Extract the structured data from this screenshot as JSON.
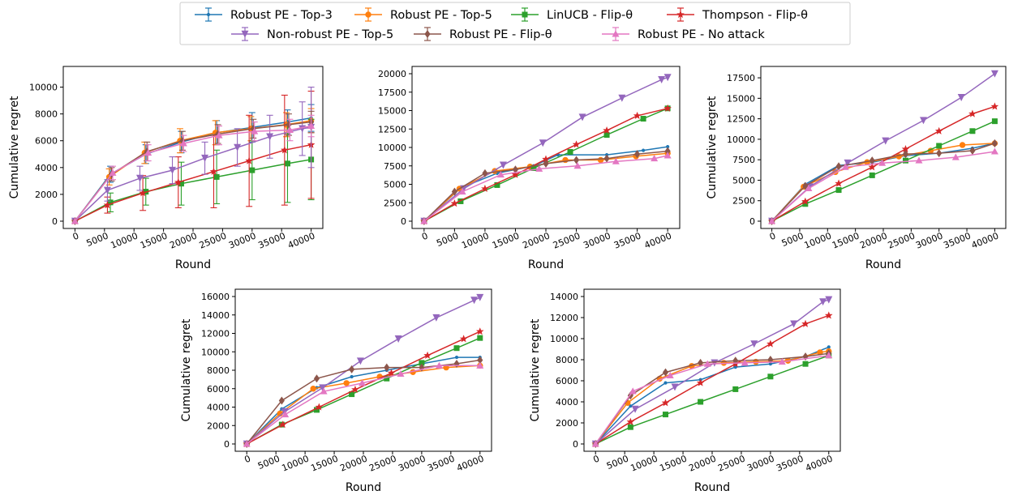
{
  "figure": {
    "legend_placement": "top-center",
    "legend_columns": 4
  },
  "series_styles": [
    {
      "name": "Robust PE - Top-3",
      "color": "#1f77b4",
      "marker": "point"
    },
    {
      "name": "Robust PE - Top-5",
      "color": "#ff7f0e",
      "marker": "circle"
    },
    {
      "name": "LinUCB - Flip-θ",
      "color": "#2ca02c",
      "marker": "square"
    },
    {
      "name": "Thompson - Flip-θ",
      "color": "#d62728",
      "marker": "star"
    },
    {
      "name": "Non-robust PE - Top-5",
      "color": "#9467bd",
      "marker": "triangle-down"
    },
    {
      "name": "Robust PE - Flip-θ",
      "color": "#8c564b",
      "marker": "diamond"
    },
    {
      "name": "Robust PE - No attack",
      "color": "#e377c2",
      "marker": "triangle-up"
    }
  ],
  "chart_data": [
    {
      "type": "line",
      "panel": "top-left",
      "xlabel": "Round",
      "ylabel": "Cumulative regret",
      "xlim": [
        0,
        40000
      ],
      "ylim": [
        0,
        11000
      ],
      "xticks": [
        0,
        5000,
        10000,
        15000,
        20000,
        25000,
        30000,
        35000,
        40000
      ],
      "yticks": [
        0,
        2000,
        4000,
        6000,
        8000,
        10000
      ],
      "error_bars": true,
      "series": [
        {
          "name": "Robust PE - Top-3",
          "x": [
            0,
            6000,
            12000,
            18000,
            24000,
            30000,
            36000,
            40000
          ],
          "y": [
            0,
            3500,
            5000,
            5900,
            6600,
            7000,
            7400,
            7700
          ],
          "err": [
            0,
            600,
            700,
            800,
            900,
            1100,
            900,
            1000
          ]
        },
        {
          "name": "Robust PE - Top-5",
          "x": [
            0,
            5800,
            11800,
            17800,
            23800,
            29800,
            35800,
            40000
          ],
          "y": [
            0,
            3300,
            5100,
            6000,
            6600,
            6900,
            7200,
            7500
          ],
          "err": [
            0,
            600,
            800,
            900,
            900,
            900,
            900,
            900
          ]
        },
        {
          "name": "LinUCB - Flip-θ",
          "x": [
            0,
            6000,
            12000,
            18000,
            24000,
            30000,
            36000,
            40000
          ],
          "y": [
            0,
            1400,
            2200,
            2800,
            3300,
            3800,
            4300,
            4600
          ],
          "err": [
            0,
            700,
            1000,
            1600,
            2000,
            2200,
            2900,
            3000
          ]
        },
        {
          "name": "Thompson - Flip-θ",
          "x": [
            0,
            5500,
            11500,
            17500,
            23500,
            29500,
            35500,
            40000
          ],
          "y": [
            0,
            1200,
            2100,
            2900,
            3700,
            4500,
            5300,
            5700
          ],
          "err": [
            0,
            600,
            1300,
            1900,
            2700,
            3400,
            4100,
            4000
          ]
        },
        {
          "name": "Non-robust PE - Top-5",
          "x": [
            0,
            5500,
            11000,
            16500,
            22000,
            27500,
            33000,
            38500,
            40000
          ],
          "y": [
            0,
            2300,
            3200,
            3800,
            4700,
            5500,
            6300,
            6900,
            7000
          ],
          "err": [
            0,
            800,
            900,
            1000,
            1200,
            1400,
            1600,
            2000,
            3000
          ]
        },
        {
          "name": "Robust PE - Flip-θ",
          "x": [
            0,
            6200,
            12200,
            18200,
            24200,
            30200,
            36200,
            40000
          ],
          "y": [
            0,
            3500,
            5200,
            6000,
            6500,
            6900,
            7200,
            7400
          ],
          "err": [
            0,
            500,
            700,
            700,
            700,
            700,
            800,
            800
          ]
        },
        {
          "name": "Robust PE - No attack",
          "x": [
            0,
            6400,
            12400,
            18400,
            24400,
            30400,
            36400,
            40000
          ],
          "y": [
            0,
            3600,
            5100,
            5800,
            6400,
            6700,
            6800,
            7100
          ],
          "err": [
            0,
            500,
            600,
            600,
            700,
            700,
            800,
            800
          ]
        }
      ]
    },
    {
      "type": "line",
      "panel": "top-middle",
      "xlabel": "Round",
      "ylabel": "",
      "xlim": [
        0,
        40000
      ],
      "ylim": [
        0,
        20000
      ],
      "xticks": [
        0,
        5000,
        10000,
        15000,
        20000,
        25000,
        30000,
        35000,
        40000
      ],
      "yticks": [
        0,
        2500,
        5000,
        7500,
        10000,
        12500,
        15000,
        17500,
        20000
      ],
      "series": [
        {
          "name": "Robust PE - Top-3",
          "x": [
            0,
            6000,
            12000,
            18000,
            22000,
            30000,
            36000,
            40000
          ],
          "y": [
            0,
            4500,
            6500,
            7500,
            9000,
            9000,
            9600,
            10100
          ]
        },
        {
          "name": "Robust PE - Top-5",
          "x": [
            0,
            5800,
            11600,
            17400,
            23200,
            29000,
            34800,
            40000
          ],
          "y": [
            0,
            4400,
            6800,
            7400,
            8300,
            8300,
            8800,
            9200
          ]
        },
        {
          "name": "LinUCB - Flip-θ",
          "x": [
            0,
            6000,
            12000,
            18000,
            24000,
            30000,
            36000,
            40000
          ],
          "y": [
            0,
            2700,
            4900,
            7200,
            9400,
            11700,
            13900,
            15300
          ]
        },
        {
          "name": "Thompson - Flip-θ",
          "x": [
            0,
            5000,
            10000,
            15000,
            20000,
            25000,
            30000,
            35000,
            40000
          ],
          "y": [
            0,
            2400,
            4400,
            6300,
            8400,
            10400,
            12300,
            14300,
            15300
          ]
        },
        {
          "name": "Non-robust PE - Top-5",
          "x": [
            0,
            6500,
            13000,
            19500,
            26000,
            32500,
            39000,
            40000
          ],
          "y": [
            0,
            4400,
            7600,
            10600,
            14100,
            16700,
            19200,
            19500
          ]
        },
        {
          "name": "Robust PE - Flip-θ",
          "x": [
            0,
            5000,
            10000,
            15000,
            20000,
            25000,
            30000,
            35000,
            40000
          ],
          "y": [
            0,
            4000,
            6500,
            7000,
            7800,
            8300,
            8500,
            9100,
            9500
          ]
        },
        {
          "name": "Robust PE - No attack",
          "x": [
            0,
            6300,
            12600,
            18900,
            25200,
            31500,
            37800,
            40000
          ],
          "y": [
            0,
            4000,
            6300,
            7100,
            7500,
            8100,
            8500,
            8900
          ]
        }
      ]
    },
    {
      "type": "line",
      "panel": "top-right",
      "xlabel": "Round",
      "ylabel": "Cumulative regret",
      "xlim": [
        0,
        40000
      ],
      "ylim": [
        0,
        18000
      ],
      "xticks": [
        0,
        5000,
        10000,
        15000,
        20000,
        25000,
        30000,
        35000,
        40000
      ],
      "yticks": [
        0,
        2500,
        5000,
        7500,
        10000,
        12500,
        15000,
        17500
      ],
      "series": [
        {
          "name": "Robust PE - Top-3",
          "x": [
            0,
            6000,
            12000,
            18000,
            24000,
            30000,
            36000,
            40000
          ],
          "y": [
            0,
            4500,
            6800,
            7200,
            8000,
            8300,
            8900,
            9500
          ]
        },
        {
          "name": "Robust PE - Top-5",
          "x": [
            0,
            5700,
            11400,
            17100,
            22800,
            28500,
            34200,
            40000
          ],
          "y": [
            0,
            4200,
            6000,
            7200,
            7900,
            8600,
            9300,
            9500
          ]
        },
        {
          "name": "LinUCB - Flip-θ",
          "x": [
            0,
            6000,
            12000,
            18000,
            24000,
            30000,
            36000,
            40000
          ],
          "y": [
            0,
            2100,
            3800,
            5600,
            7400,
            9200,
            11000,
            12200
          ]
        },
        {
          "name": "Thompson - Flip-θ",
          "x": [
            0,
            6000,
            12000,
            18000,
            24000,
            30000,
            36000,
            40000
          ],
          "y": [
            0,
            2400,
            4600,
            6600,
            8800,
            11000,
            13100,
            14000
          ]
        },
        {
          "name": "Non-robust PE - Top-5",
          "x": [
            0,
            6800,
            13600,
            20400,
            27200,
            34000,
            40000
          ],
          "y": [
            0,
            4200,
            7100,
            9800,
            12300,
            15100,
            18000
          ]
        },
        {
          "name": "Robust PE - Flip-θ",
          "x": [
            0,
            6000,
            12000,
            18000,
            24000,
            30000,
            36000,
            40000
          ],
          "y": [
            0,
            4300,
            6700,
            7400,
            8200,
            8300,
            8600,
            9500
          ]
        },
        {
          "name": "Robust PE - No attack",
          "x": [
            0,
            6600,
            13200,
            19800,
            26400,
            33000,
            40000
          ],
          "y": [
            0,
            4000,
            6600,
            7100,
            7400,
            7800,
            8500
          ]
        }
      ]
    },
    {
      "type": "line",
      "panel": "bottom-left",
      "xlabel": "Round",
      "ylabel": "Cumulative regret",
      "xlim": [
        0,
        40000
      ],
      "ylim": [
        0,
        16000
      ],
      "xticks": [
        0,
        5000,
        10000,
        15000,
        20000,
        25000,
        30000,
        35000,
        40000
      ],
      "yticks": [
        0,
        2000,
        4000,
        6000,
        8000,
        10000,
        12000,
        14000,
        16000
      ],
      "series": [
        {
          "name": "Robust PE - Top-3",
          "x": [
            0,
            6000,
            12000,
            18000,
            24000,
            30000,
            36000,
            40000
          ],
          "y": [
            0,
            3800,
            6100,
            7300,
            8000,
            8700,
            9400,
            9400
          ]
        },
        {
          "name": "Robust PE - Top-5",
          "x": [
            0,
            5700,
            11400,
            17100,
            22800,
            28500,
            34200,
            40000
          ],
          "y": [
            0,
            3300,
            6000,
            6600,
            7300,
            7800,
            8300,
            8500
          ]
        },
        {
          "name": "LinUCB - Flip-θ",
          "x": [
            0,
            6000,
            12000,
            18000,
            24000,
            30000,
            36000,
            40000
          ],
          "y": [
            0,
            2100,
            3700,
            5400,
            7100,
            8800,
            10400,
            11500
          ]
        },
        {
          "name": "Thompson - Flip-θ",
          "x": [
            0,
            6200,
            12400,
            18600,
            24800,
            31000,
            37200,
            40000
          ],
          "y": [
            0,
            2100,
            4000,
            5900,
            7700,
            9600,
            11400,
            12200
          ]
        },
        {
          "name": "Non-robust PE - Top-5",
          "x": [
            0,
            6500,
            13000,
            19500,
            26000,
            32500,
            39000,
            40000
          ],
          "y": [
            0,
            3500,
            6100,
            9000,
            11400,
            13700,
            15600,
            15900
          ]
        },
        {
          "name": "Robust PE - Flip-θ",
          "x": [
            0,
            6000,
            12000,
            18000,
            24000,
            30000,
            36000,
            40000
          ],
          "y": [
            0,
            4700,
            7100,
            8100,
            8300,
            8300,
            8700,
            9100
          ]
        },
        {
          "name": "Robust PE - No attack",
          "x": [
            0,
            6600,
            13200,
            19800,
            26400,
            33000,
            40000
          ],
          "y": [
            0,
            3200,
            5700,
            6600,
            7600,
            8500,
            8500
          ]
        }
      ]
    },
    {
      "type": "line",
      "panel": "bottom-right",
      "xlabel": "Round",
      "ylabel": "Cumulative regret",
      "xlim": [
        0,
        40000
      ],
      "ylim": [
        0,
        14000
      ],
      "xticks": [
        0,
        5000,
        10000,
        15000,
        20000,
        25000,
        30000,
        35000,
        40000
      ],
      "yticks": [
        0,
        2000,
        4000,
        6000,
        8000,
        10000,
        12000,
        14000
      ],
      "series": [
        {
          "name": "Robust PE - Top-3",
          "x": [
            0,
            6000,
            12000,
            18000,
            24000,
            30000,
            36000,
            40000
          ],
          "y": [
            0,
            3600,
            5800,
            6100,
            7300,
            7600,
            8300,
            9200
          ]
        },
        {
          "name": "Robust PE - Top-5",
          "x": [
            0,
            5500,
            11000,
            16500,
            22000,
            27500,
            33000,
            38500,
            40000
          ],
          "y": [
            0,
            3900,
            6200,
            7400,
            7700,
            7800,
            7900,
            8700,
            8800
          ]
        },
        {
          "name": "LinUCB - Flip-θ",
          "x": [
            0,
            6000,
            12000,
            18000,
            24000,
            30000,
            36000,
            40000
          ],
          "y": [
            0,
            1600,
            2800,
            4000,
            5200,
            6400,
            7600,
            8400
          ]
        },
        {
          "name": "Thompson - Flip-θ",
          "x": [
            0,
            6000,
            12000,
            18000,
            24000,
            30000,
            36000,
            40000
          ],
          "y": [
            0,
            2100,
            3900,
            5800,
            7600,
            9500,
            11400,
            12200
          ]
        },
        {
          "name": "Non-robust PE - Top-5",
          "x": [
            0,
            6800,
            13600,
            20400,
            27200,
            34000,
            39000,
            40000
          ],
          "y": [
            0,
            3300,
            5400,
            7700,
            9500,
            11400,
            13500,
            13700
          ]
        },
        {
          "name": "Robust PE - Flip-θ",
          "x": [
            0,
            6000,
            12000,
            18000,
            24000,
            30000,
            36000,
            40000
          ],
          "y": [
            0,
            4600,
            6800,
            7700,
            7900,
            8000,
            8300,
            8600
          ]
        },
        {
          "name": "Robust PE - No attack",
          "x": [
            0,
            6400,
            12800,
            19200,
            25600,
            32000,
            40000
          ],
          "y": [
            0,
            5000,
            6500,
            7600,
            7700,
            7800,
            8400
          ]
        }
      ]
    }
  ]
}
